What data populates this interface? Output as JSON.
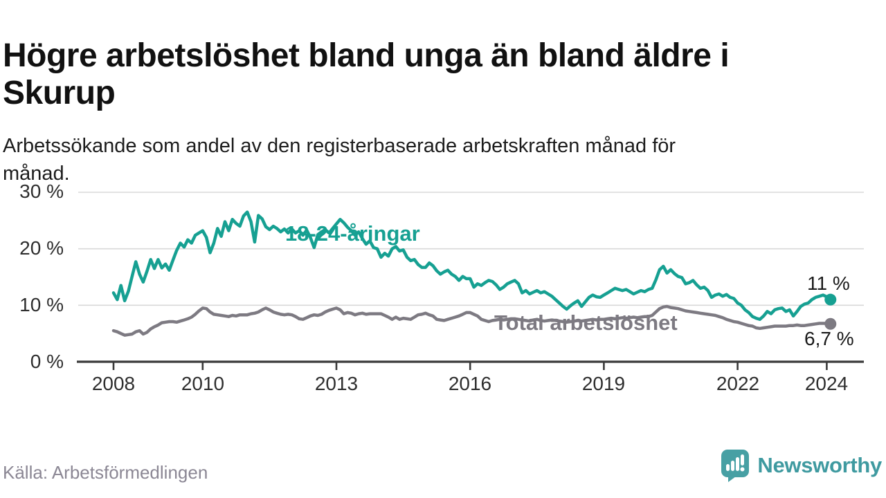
{
  "title": "Högre arbetslöshet bland unga än bland äldre i Skurup",
  "subtitle": "Arbetssökande som andel av den registerbaserade arbetskraften månad för månad.",
  "source": "Källa: Arbetsförmedlingen",
  "branding": {
    "name": "Newsworthy",
    "logo_color": "#47A0A4",
    "icon": "bar-chart-speech-bubble"
  },
  "colors": {
    "young_line": "#16A092",
    "total_line": "#7D7A82",
    "grid": "#D8D8D8",
    "axis": "#3A3A3A",
    "value_label": "#1A1A1A"
  },
  "chart_data": {
    "type": "line",
    "title": "Högre arbetslöshet bland unga än bland äldre i Skurup",
    "xlabel": "",
    "ylabel": "Arbetssökande som andel av den registerbaserade arbetskraften",
    "unit": "%",
    "x_start": "2008-01",
    "x_end": "2024-02",
    "x_interval": "monthly",
    "ylim": [
      0,
      30
    ],
    "grid": "horizontal",
    "legend_position": "inline-labels",
    "yticks": [
      {
        "label": "0 %",
        "value": 0
      },
      {
        "label": "10 %",
        "value": 10
      },
      {
        "label": "20 %",
        "value": 20
      },
      {
        "label": "30 %",
        "value": 30
      }
    ],
    "xticks": [
      {
        "label": "2008",
        "year": 2008
      },
      {
        "label": "2010",
        "year": 2010
      },
      {
        "label": "2013",
        "year": 2013
      },
      {
        "label": "2016",
        "year": 2016
      },
      {
        "label": "2019",
        "year": 2019
      },
      {
        "label": "2022",
        "year": 2022
      },
      {
        "label": "2024",
        "year": 2024
      }
    ],
    "series": [
      {
        "name": "18-24-åringar",
        "color": "#16A092",
        "end_label": "11 %",
        "end_value": 11.0,
        "values": [
          12.2,
          11.0,
          13.5,
          10.8,
          12.5,
          15.1,
          17.7,
          15.5,
          14.1,
          16.0,
          18.1,
          16.5,
          18.1,
          16.6,
          17.3,
          16.2,
          18.0,
          19.7,
          21.0,
          20.3,
          21.6,
          21.0,
          22.4,
          22.8,
          23.2,
          22.0,
          19.3,
          21.0,
          23.6,
          22.2,
          24.8,
          23.2,
          25.2,
          24.5,
          24.0,
          25.8,
          26.5,
          24.8,
          21.2,
          25.9,
          25.3,
          23.9,
          23.4,
          24.0,
          23.6,
          23.0,
          23.5,
          22.8,
          23.5,
          22.8,
          23.2,
          22.4,
          23.3,
          22.0,
          20.2,
          22.5,
          23.0,
          23.4,
          22.8,
          23.6,
          24.4,
          25.2,
          24.6,
          23.8,
          23.2,
          22.4,
          23.0,
          21.8,
          20.8,
          21.4,
          20.2,
          20.0,
          18.5,
          19.2,
          18.7,
          20.0,
          20.4,
          19.6,
          19.8,
          18.5,
          17.9,
          18.1,
          17.2,
          16.7,
          16.7,
          17.5,
          17.0,
          16.1,
          15.5,
          15.9,
          16.2,
          15.5,
          15.1,
          14.4,
          15.1,
          14.7,
          14.7,
          13.2,
          13.8,
          13.5,
          14.0,
          14.4,
          14.2,
          13.6,
          12.8,
          13.2,
          13.8,
          14.1,
          14.4,
          13.8,
          12.2,
          12.6,
          12.0,
          12.3,
          12.6,
          12.2,
          12.4,
          12.0,
          11.6,
          11.0,
          10.4,
          9.8,
          9.3,
          9.9,
          10.4,
          10.8,
          9.8,
          10.6,
          11.4,
          11.8,
          11.5,
          11.4,
          11.8,
          12.2,
          12.6,
          13.0,
          12.8,
          12.6,
          12.8,
          12.4,
          12.0,
          12.3,
          12.6,
          12.4,
          12.8,
          13.0,
          14.5,
          16.3,
          16.9,
          15.7,
          16.3,
          15.6,
          15.1,
          14.9,
          13.8,
          14.0,
          14.4,
          13.6,
          13.0,
          13.2,
          12.6,
          11.4,
          11.8,
          12.0,
          11.6,
          11.9,
          11.4,
          11.2,
          10.4,
          10.0,
          9.2,
          8.7,
          8.0,
          7.7,
          7.5,
          8.1,
          8.9,
          8.5,
          9.2,
          9.4,
          9.5,
          8.9,
          9.2,
          8.1,
          8.9,
          9.8,
          10.2,
          10.4,
          11.0,
          11.4,
          11.6,
          11.8,
          11.5,
          11.0
        ]
      },
      {
        "name": "Total arbetslöshet",
        "color": "#7D7A82",
        "end_label": "6,7 %",
        "end_value": 6.7,
        "values": [
          5.5,
          5.3,
          5.0,
          4.7,
          4.8,
          4.9,
          5.3,
          5.5,
          4.9,
          5.2,
          5.8,
          6.2,
          6.5,
          6.9,
          7.0,
          7.1,
          7.1,
          7.0,
          7.2,
          7.4,
          7.6,
          7.9,
          8.4,
          9.0,
          9.5,
          9.4,
          8.8,
          8.4,
          8.3,
          8.2,
          8.1,
          8.0,
          8.2,
          8.1,
          8.3,
          8.3,
          8.3,
          8.5,
          8.6,
          8.8,
          9.2,
          9.5,
          9.2,
          8.8,
          8.6,
          8.4,
          8.3,
          8.4,
          8.3,
          8.0,
          7.6,
          7.5,
          7.8,
          8.1,
          8.3,
          8.2,
          8.4,
          8.8,
          9.1,
          9.3,
          9.5,
          9.2,
          8.5,
          8.7,
          8.6,
          8.3,
          8.5,
          8.6,
          8.4,
          8.5,
          8.5,
          8.5,
          8.5,
          8.2,
          7.9,
          7.5,
          7.9,
          7.5,
          7.7,
          7.6,
          7.5,
          7.9,
          8.3,
          8.4,
          8.6,
          8.3,
          8.1,
          7.5,
          7.4,
          7.3,
          7.5,
          7.7,
          7.9,
          8.1,
          8.4,
          8.7,
          8.7,
          8.4,
          8.1,
          7.5,
          7.3,
          7.1,
          7.3,
          7.4,
          7.5,
          7.4,
          7.5,
          7.6,
          7.6,
          7.5,
          7.4,
          7.3,
          7.2,
          7.4,
          7.5,
          7.3,
          7.2,
          7.3,
          7.4,
          7.3,
          7.2,
          7.1,
          7.0,
          7.1,
          7.2,
          7.3,
          7.2,
          7.3,
          7.4,
          7.5,
          7.4,
          7.5,
          7.5,
          7.6,
          7.7,
          7.6,
          7.7,
          7.8,
          7.7,
          7.8,
          7.9,
          7.8,
          7.9,
          8.0,
          8.0,
          8.2,
          8.8,
          9.4,
          9.7,
          9.8,
          9.6,
          9.5,
          9.4,
          9.2,
          9.0,
          8.9,
          8.8,
          8.7,
          8.6,
          8.5,
          8.4,
          8.3,
          8.2,
          8.0,
          7.8,
          7.5,
          7.3,
          7.1,
          7.0,
          6.8,
          6.6,
          6.4,
          6.3,
          6.0,
          5.9,
          6.0,
          6.1,
          6.2,
          6.3,
          6.3,
          6.3,
          6.3,
          6.4,
          6.4,
          6.5,
          6.4,
          6.4,
          6.5,
          6.6,
          6.7,
          6.8,
          6.8,
          6.8,
          6.7
        ]
      }
    ]
  }
}
